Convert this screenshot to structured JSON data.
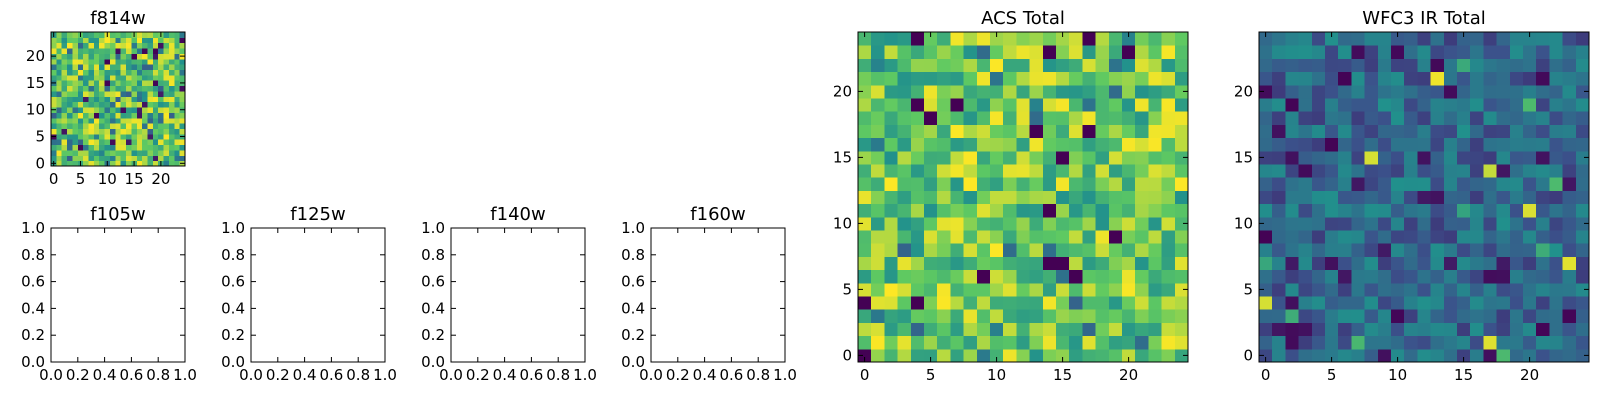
{
  "colormap": [
    "#440154",
    "#3b528b",
    "#21918c",
    "#5ec962",
    "#fde725"
  ],
  "chart_data": [
    {
      "type": "heatmap",
      "title": "f814w",
      "xlim": [
        -0.5,
        24.5
      ],
      "ylim": [
        -0.5,
        24.5
      ],
      "xticks": [
        "0",
        "5",
        "10",
        "15",
        "20"
      ],
      "yticks": [
        "0",
        "5",
        "10",
        "15",
        "20"
      ],
      "grid": false,
      "values_note": "25x25 pixel grid of random values, yellow-green dominated"
    },
    {
      "type": "heatmap",
      "title": "f105w",
      "xlim": [
        0.0,
        1.0
      ],
      "ylim": [
        0.0,
        1.0
      ],
      "xticks": [
        "0.0",
        "0.2",
        "0.4",
        "0.6",
        "0.8",
        "1.0"
      ],
      "yticks": [
        "0.0",
        "0.2",
        "0.4",
        "0.6",
        "0.8",
        "1.0"
      ],
      "empty": true
    },
    {
      "type": "heatmap",
      "title": "f125w",
      "xlim": [
        0.0,
        1.0
      ],
      "ylim": [
        0.0,
        1.0
      ],
      "xticks": [
        "0.0",
        "0.2",
        "0.4",
        "0.6",
        "0.8",
        "1.0"
      ],
      "yticks": [
        "0.0",
        "0.2",
        "0.4",
        "0.6",
        "0.8",
        "1.0"
      ],
      "empty": true
    },
    {
      "type": "heatmap",
      "title": "f140w",
      "xlim": [
        0.0,
        1.0
      ],
      "ylim": [
        0.0,
        1.0
      ],
      "xticks": [
        "0.0",
        "0.2",
        "0.4",
        "0.6",
        "0.8",
        "1.0"
      ],
      "yticks": [
        "0.0",
        "0.2",
        "0.4",
        "0.6",
        "0.8",
        "1.0"
      ],
      "empty": true
    },
    {
      "type": "heatmap",
      "title": "f160w",
      "xlim": [
        0.0,
        1.0
      ],
      "ylim": [
        0.0,
        1.0
      ],
      "xticks": [
        "0.0",
        "0.2",
        "0.4",
        "0.6",
        "0.8",
        "1.0"
      ],
      "yticks": [
        "0.0",
        "0.2",
        "0.4",
        "0.6",
        "0.8",
        "1.0"
      ],
      "empty": true
    },
    {
      "type": "heatmap",
      "title": "ACS Total",
      "xlim": [
        -0.5,
        24.5
      ],
      "ylim": [
        -0.5,
        24.5
      ],
      "xticks": [
        "0",
        "5",
        "10",
        "15",
        "20"
      ],
      "yticks": [
        "0",
        "5",
        "10",
        "15",
        "20"
      ],
      "grid": false,
      "values_note": "25x25 pixel grid, mostly green/yellow with scattered dark pixels"
    },
    {
      "type": "heatmap",
      "title": "WFC3 IR Total",
      "xlim": [
        -0.5,
        24.5
      ],
      "ylim": [
        -0.5,
        24.5
      ],
      "xticks": [
        "0",
        "5",
        "10",
        "15",
        "20"
      ],
      "yticks": [
        "0",
        "5",
        "10",
        "15",
        "20"
      ],
      "grid": false,
      "values_note": "25x25 pixel grid, mostly blue/teal with a few bright yellow pixels"
    }
  ]
}
